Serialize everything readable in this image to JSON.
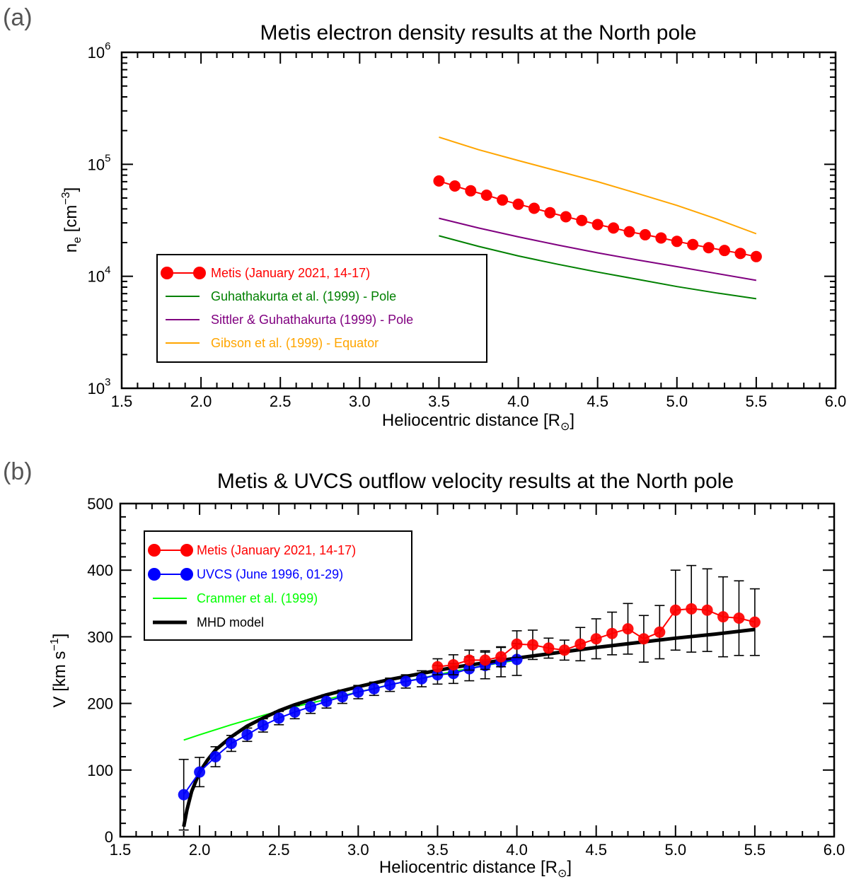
{
  "chart_data": [
    {
      "panel_label": "(a)",
      "type": "line",
      "title": "Metis electron density results at the North pole",
      "xlabel": "Heliocentric distance [R",
      "xlabel_symbol": "⊙",
      "xlabel_close": "]",
      "ylabel": "n",
      "ylabel_sub": "e",
      "ylabel_unit": " [cm",
      "ylabel_sup": "−3",
      "ylabel_close": "]",
      "xlim": [
        1.5,
        6.0
      ],
      "ylim": [
        1000,
        1000000
      ],
      "yscale": "log",
      "legend_position": "lower-left",
      "xticks": [
        "1.5",
        "2.0",
        "2.5",
        "3.0",
        "3.5",
        "4.0",
        "4.5",
        "5.0",
        "5.5",
        "6.0"
      ],
      "yticks": [
        {
          "value": 1000,
          "base": "10",
          "exp": "3"
        },
        {
          "value": 10000,
          "base": "10",
          "exp": "4"
        },
        {
          "value": 100000,
          "base": "10",
          "exp": "5"
        },
        {
          "value": 1000000,
          "base": "10",
          "exp": "6"
        }
      ],
      "series": [
        {
          "name": "Metis (January 2021, 14-17)",
          "color": "#ff0000",
          "style": "line-markers",
          "x": [
            3.5,
            3.6,
            3.7,
            3.8,
            3.9,
            4.0,
            4.1,
            4.2,
            4.3,
            4.4,
            4.5,
            4.6,
            4.7,
            4.8,
            4.9,
            5.0,
            5.1,
            5.2,
            5.3,
            5.4,
            5.5
          ],
          "y": [
            71000,
            64000,
            58000,
            53000,
            48000,
            44000,
            40500,
            37000,
            34000,
            31500,
            29000,
            27000,
            25000,
            23500,
            22000,
            20500,
            19200,
            18000,
            17000,
            16000,
            15000
          ]
        },
        {
          "name": "Guhathakurta et al. (1999) - Pole",
          "color": "#008000",
          "style": "line",
          "x": [
            3.5,
            3.75,
            4.0,
            4.25,
            4.5,
            4.75,
            5.0,
            5.25,
            5.5
          ],
          "y": [
            23000,
            18500,
            15200,
            12800,
            10900,
            9400,
            8100,
            7100,
            6300
          ]
        },
        {
          "name": "Sittler & Guhathakurta (1999) - Pole",
          "color": "#800080",
          "style": "line",
          "x": [
            3.5,
            3.75,
            4.0,
            4.25,
            4.5,
            4.75,
            5.0,
            5.25,
            5.5
          ],
          "y": [
            33000,
            27000,
            22500,
            19000,
            16200,
            14000,
            12200,
            10600,
            9200
          ]
        },
        {
          "name": "Gibson et al. (1999) - Equator",
          "color": "#ffa500",
          "style": "line",
          "x": [
            3.5,
            3.75,
            4.0,
            4.25,
            4.5,
            4.75,
            5.0,
            5.25,
            5.5
          ],
          "y": [
            175000,
            135000,
            108000,
            87000,
            70000,
            55000,
            43000,
            32500,
            24000
          ]
        }
      ]
    },
    {
      "panel_label": "(b)",
      "type": "line",
      "title": "Metis & UVCS outflow velocity results at the North pole",
      "xlabel": "Heliocentric distance [R",
      "xlabel_symbol": "⊙",
      "xlabel_close": "]",
      "ylabel": "V [km s",
      "ylabel_sup": "−1",
      "ylabel_close": "]",
      "xlim": [
        1.5,
        6.0
      ],
      "ylim": [
        0,
        500
      ],
      "yscale": "linear",
      "legend_position": "upper-left",
      "xticks": [
        "1.5",
        "2.0",
        "2.5",
        "3.0",
        "3.5",
        "4.0",
        "4.5",
        "5.0",
        "5.5",
        "6.0"
      ],
      "yticks": [
        "0",
        "100",
        "200",
        "300",
        "400",
        "500"
      ],
      "series": [
        {
          "name": "Metis (January 2021, 14-17)",
          "color": "#ff0000",
          "style": "line-markers-errorbars",
          "x": [
            3.5,
            3.6,
            3.7,
            3.8,
            3.9,
            4.0,
            4.1,
            4.2,
            4.3,
            4.4,
            4.5,
            4.6,
            4.7,
            4.8,
            4.9,
            5.0,
            5.1,
            5.2,
            5.3,
            5.4,
            5.5
          ],
          "y": [
            255,
            258,
            265,
            265,
            270,
            289,
            288,
            283,
            280,
            289,
            297,
            305,
            312,
            297,
            307,
            340,
            342,
            340,
            330,
            328,
            322
          ],
          "err": [
            12,
            15,
            15,
            14,
            15,
            20,
            22,
            15,
            15,
            25,
            30,
            32,
            38,
            35,
            40,
            60,
            65,
            62,
            60,
            56,
            50
          ]
        },
        {
          "name": "UVCS (June 1996, 01-29)",
          "color": "#0000ff",
          "style": "line-markers-errorbars",
          "x": [
            1.9,
            2.0,
            2.1,
            2.2,
            2.3,
            2.4,
            2.5,
            2.6,
            2.7,
            2.8,
            2.9,
            3.0,
            3.1,
            3.2,
            3.3,
            3.4,
            3.5,
            3.6,
            3.7,
            3.8,
            3.9,
            4.0
          ],
          "y": [
            63,
            97,
            120,
            140,
            153,
            167,
            178,
            187,
            195,
            203,
            210,
            217,
            222,
            228,
            233,
            237,
            243,
            245,
            252,
            257,
            262,
            266
          ],
          "err": [
            53,
            22,
            15,
            12,
            10,
            10,
            10,
            10,
            10,
            10,
            10,
            10,
            10,
            10,
            10,
            12,
            14,
            15,
            18,
            20,
            22,
            24
          ]
        },
        {
          "name": "Cranmer et al. (1999)",
          "color": "#00ff00",
          "style": "line",
          "x": [
            1.9,
            2.0,
            2.2,
            2.4,
            2.6,
            2.8,
            3.0,
            3.2,
            3.4,
            3.6,
            3.8,
            4.0
          ],
          "y": [
            145,
            153,
            168,
            182,
            195,
            206,
            217,
            228,
            238,
            248,
            257,
            265
          ]
        },
        {
          "name": "MHD model",
          "color": "#000000",
          "style": "thick-line",
          "x": [
            1.9,
            1.92,
            1.95,
            2.0,
            2.05,
            2.1,
            2.2,
            2.3,
            2.4,
            2.5,
            2.6,
            2.8,
            3.0,
            3.2,
            3.4,
            3.6,
            3.8,
            4.0,
            4.25,
            4.5,
            4.75,
            5.0,
            5.25,
            5.5
          ],
          "y": [
            15,
            40,
            68,
            97,
            115,
            130,
            150,
            166,
            178,
            189,
            198,
            213,
            225,
            236,
            245,
            254,
            261,
            268,
            276,
            284,
            291,
            298,
            304,
            311
          ]
        }
      ]
    }
  ]
}
